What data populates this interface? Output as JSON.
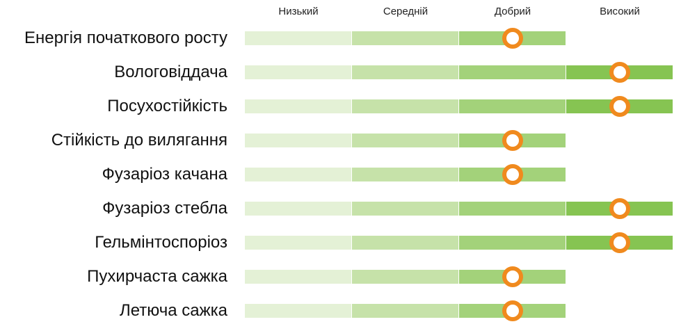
{
  "chart_data": {
    "type": "table",
    "levels": [
      "Низький",
      "Середній",
      "Добрий",
      "Високий"
    ],
    "rows": [
      {
        "label": "Енергія початкового росту",
        "value": 3
      },
      {
        "label": "Вологовіддача",
        "value": 4
      },
      {
        "label": "Посухостійкість",
        "value": 4
      },
      {
        "label": "Стійкість до вилягання",
        "value": 3
      },
      {
        "label": "Фузаріоз качана",
        "value": 3
      },
      {
        "label": "Фузаріоз стебла",
        "value": 4
      },
      {
        "label": "Гельмінтоспоріоз",
        "value": 4
      },
      {
        "label": "Пухирчаста сажка",
        "value": 3
      },
      {
        "label": "Летюча сажка",
        "value": 3
      }
    ],
    "level_colors": [
      "#e4f1d6",
      "#c6e2a9",
      "#a3d27a",
      "#86c452"
    ],
    "marker_color": "#f08a1e",
    "scale_min": 1,
    "scale_max": 4
  }
}
